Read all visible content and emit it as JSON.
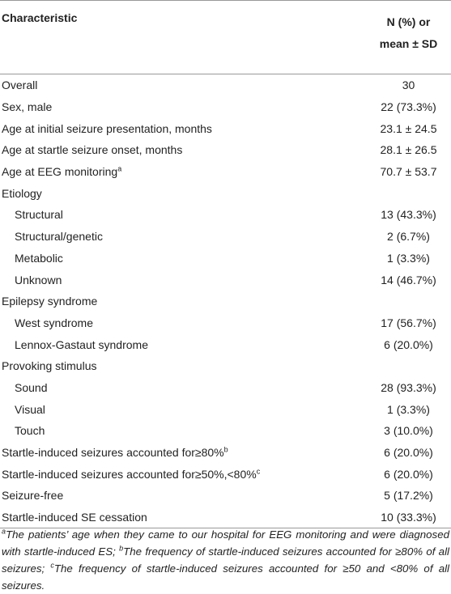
{
  "table": {
    "header": {
      "characteristic": "Characteristic",
      "value_lines": [
        "N (%) or",
        "mean ± SD"
      ]
    },
    "rows": [
      {
        "label": "Overall",
        "value": "30"
      },
      {
        "label": "Sex, male",
        "value": "22 (73.3%)"
      },
      {
        "label": "Age at initial seizure presentation, months",
        "value": "23.1 ± 24.5"
      },
      {
        "label": "Age at startle seizure onset, months",
        "value": "28.1 ± 26.5"
      },
      {
        "label": "Age at EEG monitoring",
        "sup": "a",
        "value": "70.7 ± 53.7"
      },
      {
        "label": "Etiology"
      },
      {
        "label": "Structural",
        "indent": true,
        "value": "13 (43.3%)"
      },
      {
        "label": "Structural/genetic",
        "indent": true,
        "value": "2 (6.7%)"
      },
      {
        "label": "Metabolic",
        "indent": true,
        "value": "1 (3.3%)"
      },
      {
        "label": "Unknown",
        "indent": true,
        "value": "14 (46.7%)"
      },
      {
        "label": "Epilepsy syndrome"
      },
      {
        "label": "West syndrome",
        "indent": true,
        "value": "17 (56.7%)"
      },
      {
        "label": "Lennox-Gastaut syndrome",
        "indent": true,
        "value": "6 (20.0%)"
      },
      {
        "label": "Provoking stimulus"
      },
      {
        "label": "Sound",
        "indent": true,
        "value": "28 (93.3%)"
      },
      {
        "label": "Visual",
        "indent": true,
        "value": "1 (3.3%)"
      },
      {
        "label": "Touch",
        "indent": true,
        "value": "3 (10.0%)"
      },
      {
        "label": "Startle-induced seizures accounted for≥80%",
        "sup": "b",
        "value": "6 (20.0%)"
      },
      {
        "label": "Startle-induced seizures accounted for≥50%,<80%",
        "sup": "c",
        "value": "6 (20.0%)"
      },
      {
        "label": "Seizure-free",
        "value": "5 (17.2%)"
      },
      {
        "label": "Startle-induced SE cessation",
        "value": "10 (33.3%)"
      }
    ]
  },
  "footnotes": [
    {
      "mark": "a",
      "text": "The patients’ age when they came to our hospital for EEG monitoring and were diagnosed with startle-induced ES; "
    },
    {
      "mark": "b",
      "text": "The frequency of startle-induced seizures accounted for ≥80% of all seizures; "
    },
    {
      "mark": "c",
      "text": "The frequency of startle-induced seizures accounted for ≥50 and <80% of all seizures."
    }
  ]
}
